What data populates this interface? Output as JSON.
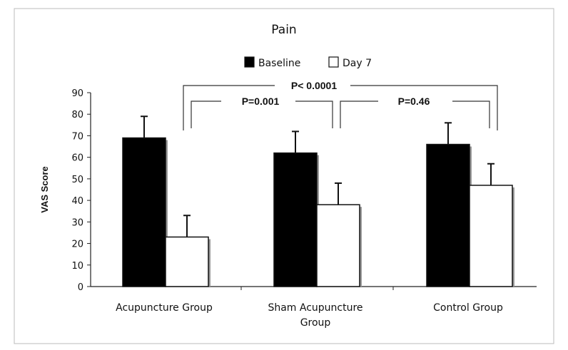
{
  "chart_data": {
    "type": "bar",
    "title": "Pain",
    "xlabel": "",
    "ylabel": "VAS Score",
    "ylim": [
      0,
      90
    ],
    "yticks": [
      0,
      10,
      20,
      30,
      40,
      50,
      60,
      70,
      80,
      90
    ],
    "categories": [
      "Acupuncture Group",
      "Sham Acupuncture Group",
      "Control Group"
    ],
    "category_lines": [
      [
        "Acupuncture Group"
      ],
      [
        "Sham Acupuncture",
        "Group"
      ],
      [
        "Control Group"
      ]
    ],
    "series": [
      {
        "name": "Baseline",
        "color": "#000000",
        "values": [
          69,
          62,
          66
        ],
        "error": [
          10,
          10,
          10
        ]
      },
      {
        "name": "Day 7",
        "color": "#ffffff",
        "values": [
          23,
          38,
          47
        ],
        "error": [
          10,
          10,
          10
        ]
      }
    ],
    "legend": {
      "placement": "top-center",
      "entries": [
        "Baseline",
        "Day 7"
      ]
    },
    "annotations": [
      {
        "text": "P< 0.0001",
        "from": "Acupuncture Group",
        "to": "Control Group"
      },
      {
        "text": "P=0.001",
        "from": "Acupuncture Group",
        "to": "Sham Acupuncture Group"
      },
      {
        "text": "P=0.46",
        "from": "Sham Acupuncture Group",
        "to": "Control Group"
      }
    ],
    "grid": false
  }
}
